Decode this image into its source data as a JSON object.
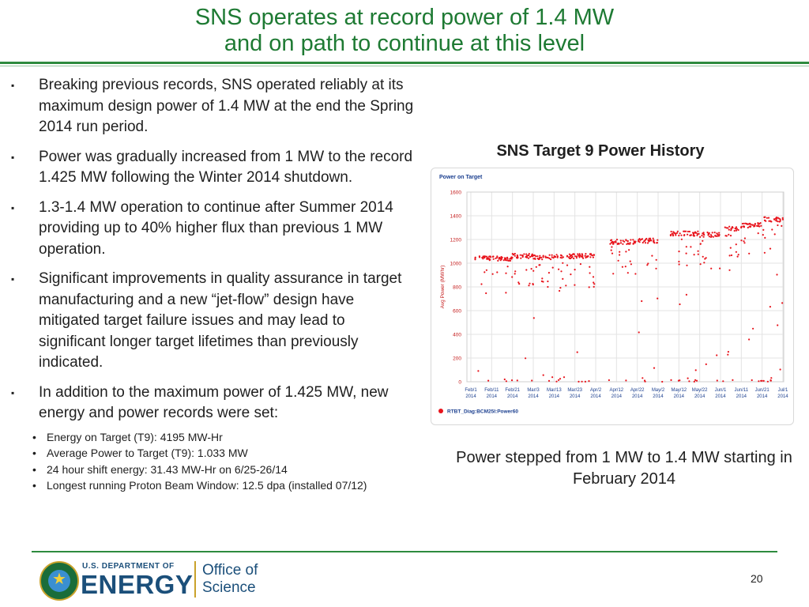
{
  "slide": {
    "title_line1": "SNS operates at record power of 1.4 MW",
    "title_line2": "and on path to continue at this level",
    "accent_color": "#1e7a33",
    "page_number": "20"
  },
  "bullets": [
    {
      "marker": "▪",
      "text": "Breaking previous records, SNS operated reliably at its maximum design power of 1.4 MW at the end the Spring 2014 run period."
    },
    {
      "marker": "▪",
      "text": "Power was gradually increased from 1 MW to the record 1.425  MW following the Winter 2014 shutdown."
    },
    {
      "marker": "▪",
      "text": "1.3-1.4 MW operation to continue after Summer 2014 providing up to 40% higher flux than previous 1 MW operation."
    },
    {
      "marker": "▪",
      "text": "Significant improvements in quality assurance in target manufacturing and a new “jet-flow” design have mitigated target failure issues and may lead to significant longer target lifetimes than previously indicated."
    },
    {
      "marker": "▪",
      "text": "In addition to the maximum power of 1.425 MW, new energy and power records were set:"
    }
  ],
  "sub_bullets": [
    {
      "marker": "•",
      "text": "Energy on Target (T9): 4195 MW-Hr"
    },
    {
      "marker": "•",
      "text": "Average Power to Target (T9): 1.033 MW"
    },
    {
      "marker": "•",
      "text": "24 hour shift energy: 31.43 MW-Hr on 6/25-26/14"
    },
    {
      "marker": "•",
      "text": "Longest running Proton Beam Window: 12.5 dpa (installed 07/12)"
    }
  ],
  "chart_heading": "SNS Target 9 Power History",
  "caption": "Power stepped from 1 MW to 1.4 MW starting in February 2014",
  "footer": {
    "doe_small": "U.S. DEPARTMENT OF",
    "doe_big": "ENERGY",
    "office_line1": "Office of",
    "office_line2": "Science"
  },
  "chart_data": {
    "type": "scatter",
    "title": "Power on Target",
    "ylabel": "Avg Power (MWhr)",
    "xlabel": "",
    "ylim": [
      0,
      1600
    ],
    "yticks": [
      0,
      200,
      400,
      600,
      800,
      1000,
      1200,
      1400,
      1600
    ],
    "xtick_labels": [
      [
        "Feb/1",
        "2014"
      ],
      [
        "Feb/11",
        "2014"
      ],
      [
        "Feb/21",
        "2014"
      ],
      [
        "Mar/3",
        "2014"
      ],
      [
        "Mar/13",
        "2014"
      ],
      [
        "Mar/23",
        "2014"
      ],
      [
        "Apr/2",
        "2014"
      ],
      [
        "Apr/12",
        "2014"
      ],
      [
        "Apr/22",
        "2014"
      ],
      [
        "May/2",
        "2014"
      ],
      [
        "May/12",
        "2014"
      ],
      [
        "May/22",
        "2014"
      ],
      [
        "Jun/1",
        "2014"
      ],
      [
        "Jun/11",
        "2014"
      ],
      [
        "Jun/21",
        "2014"
      ],
      [
        "Jul/1",
        "2014"
      ]
    ],
    "grid": true,
    "legend_position": "bottom-left",
    "color": "#e8141c",
    "series": [
      {
        "name": "RTBT_Diag:BCM25I:Power60",
        "segments": [
          {
            "start": "Feb/3",
            "end": "Feb/21",
            "level": 1040
          },
          {
            "start": "Feb/21",
            "end": "Mar/3",
            "level": 1060
          },
          {
            "start": "Mar/3",
            "end": "Mar/13",
            "level": 1050
          },
          {
            "start": "Mar/13",
            "end": "Mar/23",
            "level": 1060
          },
          {
            "start": "Mar/23",
            "end": "Apr/2",
            "level": 1060
          },
          {
            "start": "Apr/9",
            "end": "Apr/22",
            "level": 1180
          },
          {
            "start": "Apr/22",
            "end": "May/2",
            "level": 1190
          },
          {
            "start": "May/8",
            "end": "May/22",
            "level": 1250
          },
          {
            "start": "May/22",
            "end": "Jun/1",
            "level": 1240
          },
          {
            "start": "Jun/3",
            "end": "Jun/11",
            "level": 1290
          },
          {
            "start": "Jun/11",
            "end": "Jun/21",
            "level": 1320
          },
          {
            "start": "Jun/21",
            "end": "Jul/1",
            "level": 1370
          }
        ]
      }
    ]
  }
}
